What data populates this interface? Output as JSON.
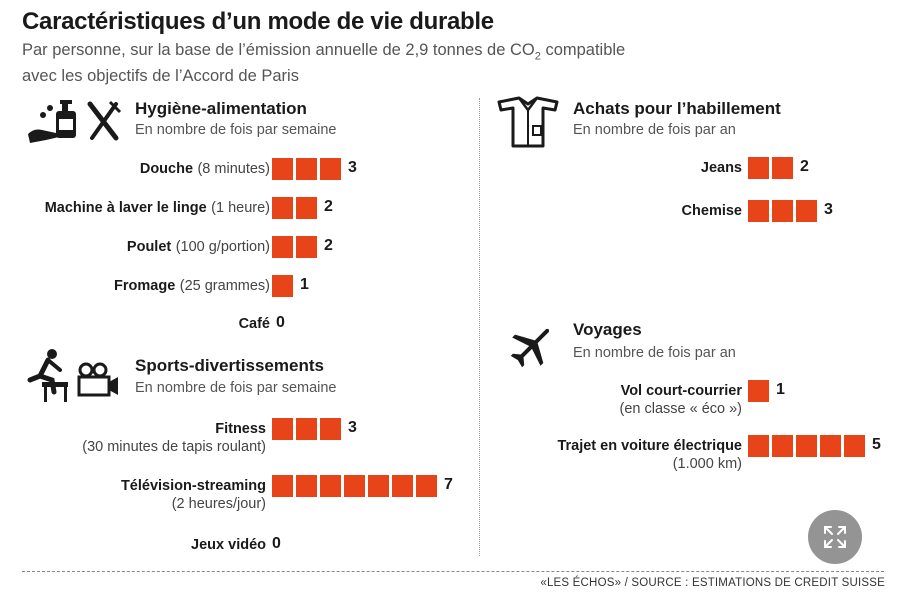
{
  "title": "Caractéristiques d’un mode de vie durable",
  "subtitle": {
    "line1_pre": "Par personne, sur la base de l’émission annuelle de 2,9 tonnes de CO",
    "line1_sub": "2",
    "line1_post": " compatible",
    "line2": "avec les objectifs de l’Accord de Paris"
  },
  "source": "«LES ÉCHOS» / SOURCE : ESTIMATIONS DE CREDIT SUISSE",
  "colors": {
    "accent": "#e8441a",
    "text": "#1a1a1a",
    "muted": "#555555"
  },
  "chart_data": [
    {
      "type": "bar",
      "title": "Hygiène-alimentation",
      "unit": "En nombre de fois par semaine",
      "icons": [
        "hand-soap-icon",
        "cutlery-icon"
      ],
      "categories": [
        {
          "label": "Douche",
          "detail": "(8 minutes)",
          "sub": "",
          "value": 3
        },
        {
          "label": "Machine à laver le linge",
          "detail": "(1 heure)",
          "sub": "",
          "value": 2
        },
        {
          "label": "Poulet",
          "detail": "(100 g/portion)",
          "sub": "",
          "value": 2
        },
        {
          "label": "Fromage",
          "detail": "(25 grammes)",
          "sub": "",
          "value": 1
        },
        {
          "label": "Café",
          "detail": "",
          "sub": "",
          "value": 0
        }
      ]
    },
    {
      "type": "bar",
      "title": "Sports-divertissements",
      "unit": "En nombre de fois par semaine",
      "icons": [
        "runner-hurdle-icon",
        "video-camera-icon"
      ],
      "categories": [
        {
          "label": "Fitness",
          "detail": "",
          "sub": "(30 minutes de tapis roulant)",
          "value": 3
        },
        {
          "label": "Télévision-streaming",
          "detail": "",
          "sub": "(2 heures/jour)",
          "value": 7
        },
        {
          "label": "Jeux vidéo",
          "detail": "",
          "sub": "",
          "value": 0
        }
      ]
    },
    {
      "type": "bar",
      "title": "Achats pour l’habillement",
      "unit": "En nombre de fois par an",
      "icons": [
        "shirt-icon"
      ],
      "categories": [
        {
          "label": "Jeans",
          "detail": "",
          "sub": "",
          "value": 2
        },
        {
          "label": "Chemise",
          "detail": "",
          "sub": "",
          "value": 3
        }
      ]
    },
    {
      "type": "bar",
      "title": "Voyages",
      "unit": "En nombre de fois par an",
      "icons": [
        "airplane-icon"
      ],
      "categories": [
        {
          "label": "Vol court-courrier",
          "detail": "",
          "sub": "(en classe « éco »)",
          "value": 1
        },
        {
          "label": "Trajet en voiture électrique",
          "detail": "",
          "sub": "(1.000 km)",
          "value": 5
        }
      ]
    }
  ]
}
